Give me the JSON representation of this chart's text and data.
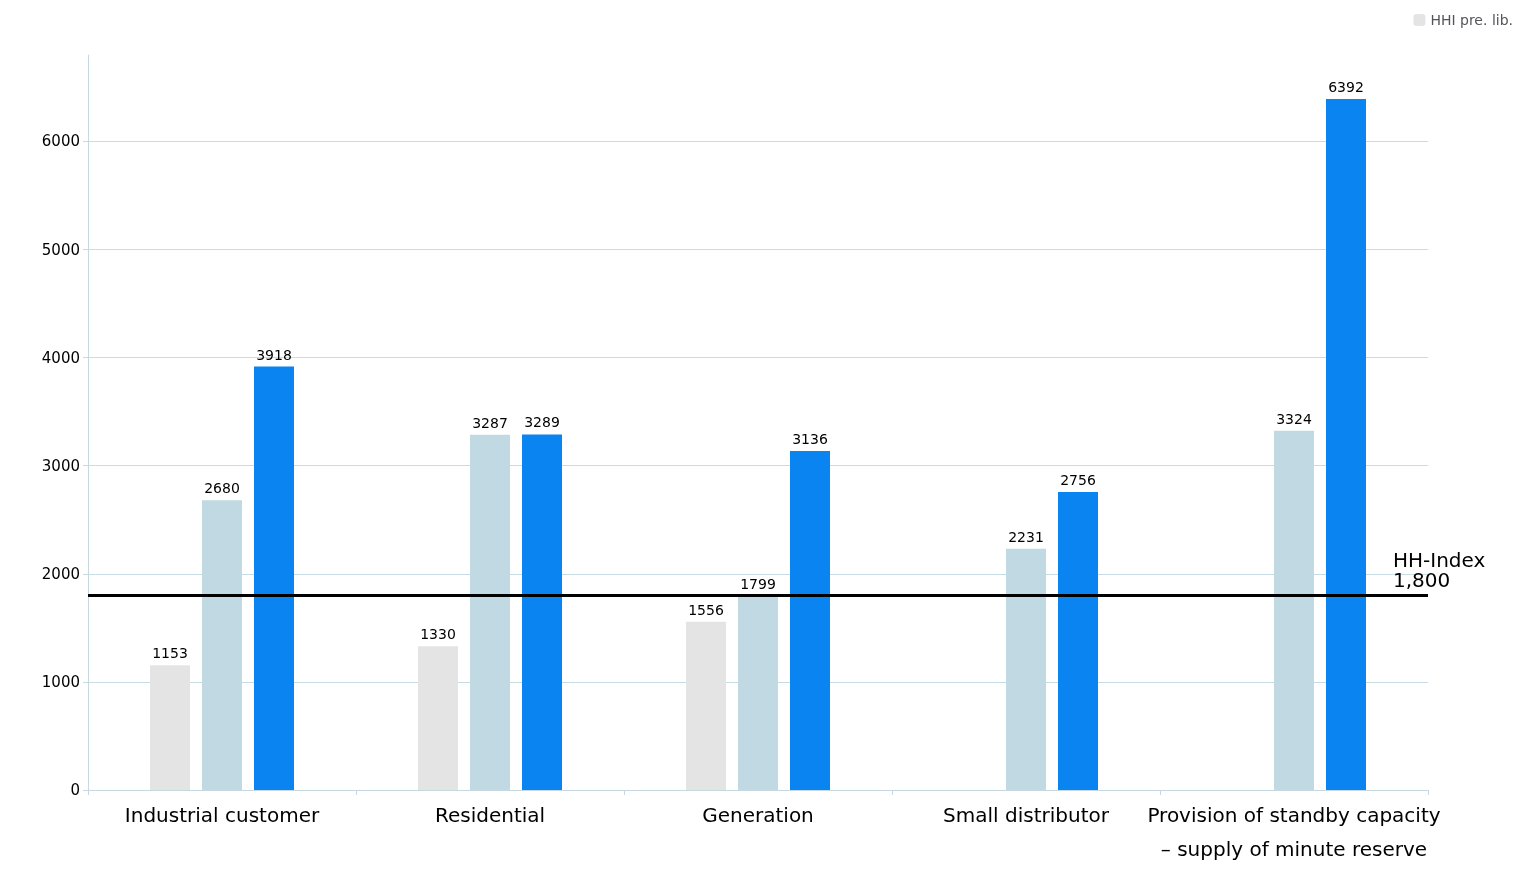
{
  "chart_data": {
    "type": "bar",
    "categories": [
      "Industrial customer",
      "Residential",
      "Generation",
      "Small distributor",
      "Provision of standby capacity\n– supply of minute reserve"
    ],
    "series": [
      {
        "name": "HHI pre. lib.",
        "color": "#e4e4e4",
        "values": [
          1153,
          1330,
          1556,
          null,
          null
        ]
      },
      {
        "color": "#c0d9e3",
        "values": [
          2680,
          3287,
          1799,
          2231,
          3324
        ]
      },
      {
        "color": "#0a84f0",
        "values": [
          3918,
          3289,
          3136,
          2756,
          6392
        ]
      }
    ],
    "ylim": [
      0,
      6800
    ],
    "yticks": [
      0,
      1000,
      2000,
      3000,
      4000,
      5000,
      6000
    ],
    "grid": "y",
    "legend": "top right",
    "data_labels": true,
    "ref_lines": [
      {
        "axis": "y",
        "value": 1800,
        "label": "HH-Index\n1,800",
        "color": "#000000"
      }
    ]
  }
}
